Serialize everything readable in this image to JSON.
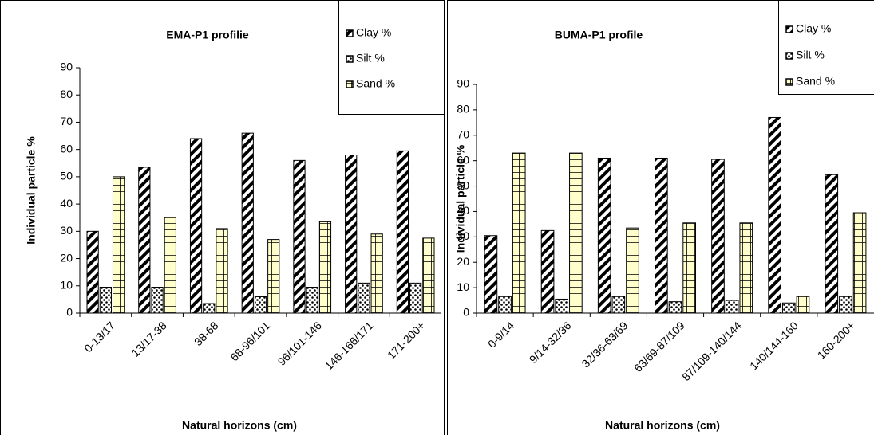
{
  "chart_data": [
    {
      "type": "bar",
      "title": "EMA-P1 profilie",
      "x_label": "Natural horizons (cm)",
      "y_label": "Individual particle %",
      "categories": [
        "0-13/17",
        "13/17-38",
        "38-68",
        "68-96/101",
        "96/101-146",
        "146-166/171",
        "171-200+"
      ],
      "series": [
        {
          "name": "Clay %",
          "color": "#000000",
          "values": [
            30,
            53.5,
            64,
            66,
            56,
            58,
            59.5
          ]
        },
        {
          "name": "Silt %",
          "color": "#000000",
          "values": [
            9.5,
            9.5,
            3.5,
            6,
            9.5,
            11,
            11
          ]
        },
        {
          "name": "Sand %",
          "color": "#ffffcc",
          "values": [
            50,
            35,
            31,
            27,
            33.5,
            29,
            27.5
          ]
        }
      ],
      "ylim": [
        0,
        90
      ],
      "yticks": [
        0,
        10,
        20,
        30,
        40,
        50,
        60,
        70,
        80,
        90
      ],
      "legend": "top-right"
    },
    {
      "type": "bar",
      "title": "BUMA-P1 profile",
      "x_label": "Natural horizons (cm)",
      "y_label": "Individual particle %",
      "categories": [
        "0-9/14",
        "9/14-32/36",
        "32/36-63/69",
        "63/69-87/109",
        "87/109-140/144",
        "140/144-160",
        "160-200+"
      ],
      "series": [
        {
          "name": "Clay %",
          "color": "#000000",
          "values": [
            30.5,
            32.5,
            61,
            61,
            60.5,
            77,
            54.5
          ]
        },
        {
          "name": "Silt %",
          "color": "#000000",
          "values": [
            6.5,
            5.5,
            6.5,
            4.5,
            5,
            4,
            6.5
          ]
        },
        {
          "name": "Sand %",
          "color": "#ffffcc",
          "values": [
            63,
            63,
            33.5,
            35.5,
            35.5,
            6.5,
            39.5
          ]
        }
      ],
      "ylim": [
        0,
        90
      ],
      "yticks": [
        0,
        10,
        20,
        30,
        40,
        50,
        60,
        70,
        80,
        90
      ],
      "legend": "top-right"
    }
  ]
}
